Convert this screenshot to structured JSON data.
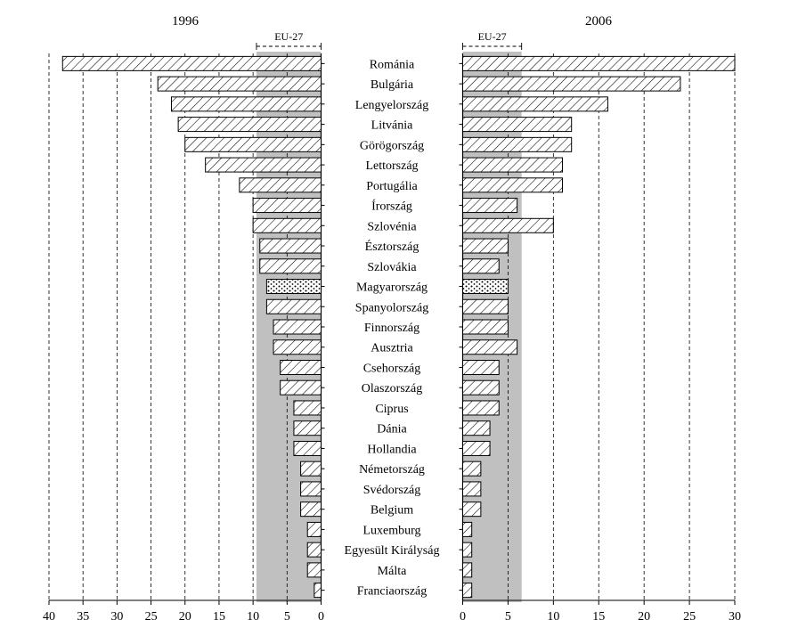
{
  "chart_data": {
    "type": "bar",
    "orientation": "horizontal-butterfly",
    "categories": [
      "Románia",
      "Bulgária",
      "Lengyelország",
      "Litvánia",
      "Görögország",
      "Lettország",
      "Portugália",
      "Írország",
      "Szlovénia",
      "Észtország",
      "Szlovákia",
      "Magyarország",
      "Spanyolország",
      "Finnország",
      "Ausztria",
      "Csehország",
      "Olaszország",
      "Ciprus",
      "Dánia",
      "Hollandia",
      "Németország",
      "Svédország",
      "Belgium",
      "Luxemburg",
      "Egyesült Királyság",
      "Málta",
      "Franciaország"
    ],
    "highlight_category": "Magyarország",
    "grid": true,
    "panels": [
      {
        "title": "1996",
        "direction": "reversed",
        "xlim": [
          0,
          40
        ],
        "xticks": [
          40,
          35,
          30,
          25,
          20,
          15,
          10,
          5,
          0
        ],
        "xtick_labels": [
          "40",
          "35",
          "30",
          "25",
          "20",
          "15",
          "10",
          "5",
          "0"
        ],
        "values": [
          38,
          24,
          22,
          21,
          20,
          17,
          12,
          10,
          10,
          9,
          9,
          8,
          8,
          7,
          7,
          6,
          6,
          4,
          4,
          4,
          3,
          3,
          3,
          2,
          2,
          2,
          1
        ],
        "reference": {
          "label": "EU-27",
          "value": 9.5
        }
      },
      {
        "title": "2006",
        "direction": "normal",
        "xlim": [
          0,
          30
        ],
        "xticks": [
          0,
          5,
          10,
          15,
          20,
          25,
          30
        ],
        "xtick_labels": [
          "0",
          "5",
          "10",
          "15",
          "20",
          "25",
          "30"
        ],
        "values": [
          30,
          24,
          16,
          12,
          12,
          11,
          11,
          6,
          10,
          5,
          4,
          5,
          5,
          5,
          6,
          4,
          4,
          4,
          3,
          3,
          2,
          2,
          2,
          1,
          1,
          1,
          1
        ],
        "reference": {
          "label": "EU-27",
          "value": 6.5
        }
      }
    ]
  },
  "colors": {
    "eu_band": "#c0c0c0",
    "bar_fill": "#ffffff",
    "bar_stroke": "#000000",
    "hatch": "#000000",
    "grid": "#000000"
  }
}
